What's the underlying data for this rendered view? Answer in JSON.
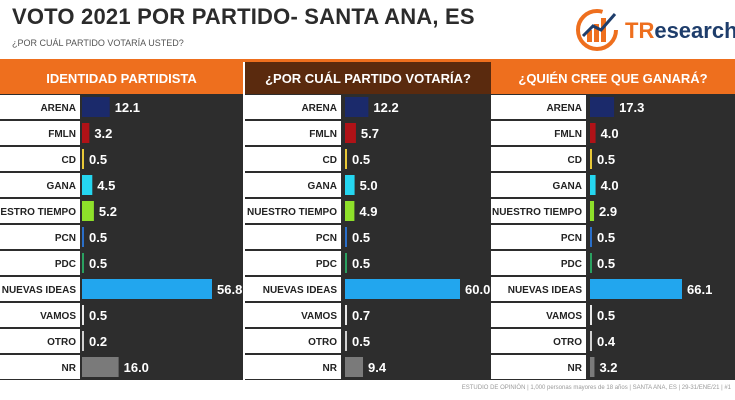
{
  "header": {
    "title": "VOTO 2021 POR PARTIDO- SANTA ANA, ES",
    "subtitle": "¿POR CUÁL PARTIDO VOTARÍA USTED?",
    "logo_text_prefix": "TR",
    "logo_text_rest": "esearch"
  },
  "footer": {
    "note": "ESTUDIO DE OPINIÓN | 1,000 personas mayores de 18 años | SANTA ANA, ES | 29-31/ENE/21 | #1"
  },
  "colors": {
    "accent": "#ee6f1e",
    "dark_header": "#5a2a0e",
    "panel_bg": "#2d2d2d",
    "label_bg": "#ffffff"
  },
  "chart_data": [
    {
      "type": "bar",
      "title": "IDENTIDAD PARTIDISTA",
      "categories": [
        "ARENA",
        "FMLN",
        "CD",
        "GANA",
        "NUESTRO TIEMPO",
        "PCN",
        "PDC",
        "NUEVAS IDEAS",
        "VAMOS",
        "OTRO",
        "NR"
      ],
      "values": [
        12.1,
        3.2,
        0.5,
        4.5,
        5.2,
        0.5,
        0.5,
        56.8,
        0.5,
        0.2,
        16.0
      ],
      "value_labels": [
        "12.1",
        "3.2",
        "0.5",
        "4.5",
        "5.2",
        "0.5",
        "0.5",
        "56.8",
        "0.5",
        "0.2",
        "16.0"
      ],
      "colors": [
        "#1b2a6b",
        "#b01217",
        "#e8c838",
        "#25d6f0",
        "#8ee02a",
        "#2a6fc9",
        "#2aa060",
        "#22a6ee",
        "#e8e8e8",
        "#d0d0d0",
        "#7a7a7a"
      ]
    },
    {
      "type": "bar",
      "title": "¿POR CUÁL PARTIDO VOTARÍA?",
      "categories": [
        "ARENA",
        "FMLN",
        "CD",
        "GANA",
        "NUESTRO TIEMPO",
        "PCN",
        "PDC",
        "NUEVAS IDEAS",
        "VAMOS",
        "OTRO",
        "NR"
      ],
      "values": [
        12.2,
        5.7,
        0.5,
        5.0,
        4.9,
        0.5,
        0.5,
        60.0,
        0.7,
        0.5,
        9.4
      ],
      "value_labels": [
        "12.2",
        "5.7",
        "0.5",
        "5.0",
        "4.9",
        "0.5",
        "0.5",
        "60.0",
        "0.7",
        "0.5",
        "9.4"
      ],
      "colors": [
        "#1b2a6b",
        "#b01217",
        "#e8c838",
        "#25d6f0",
        "#8ee02a",
        "#2a6fc9",
        "#2aa060",
        "#22a6ee",
        "#e8e8e8",
        "#d0d0d0",
        "#7a7a7a"
      ]
    },
    {
      "type": "bar",
      "title": "¿QUIÉN CREE QUE GANARÁ?",
      "categories": [
        "ARENA",
        "FMLN",
        "CD",
        "GANA",
        "NUESTRO TIEMPO",
        "PCN",
        "PDC",
        "NUEVAS IDEAS",
        "VAMOS",
        "OTRO",
        "NR"
      ],
      "values": [
        17.3,
        4.0,
        0.5,
        4.0,
        2.9,
        0.5,
        0.5,
        66.1,
        0.5,
        0.4,
        3.2
      ],
      "value_labels": [
        "17.3",
        "4.0",
        "0.5",
        "4.0",
        "2.9",
        "0.5",
        "0.5",
        "66.1",
        "0.5",
        "0.4",
        "3.2"
      ],
      "colors": [
        "#1b2a6b",
        "#b01217",
        "#e8c838",
        "#25d6f0",
        "#8ee02a",
        "#2a6fc9",
        "#2aa060",
        "#22a6ee",
        "#e8e8e8",
        "#d0d0d0",
        "#7a7a7a"
      ]
    }
  ]
}
